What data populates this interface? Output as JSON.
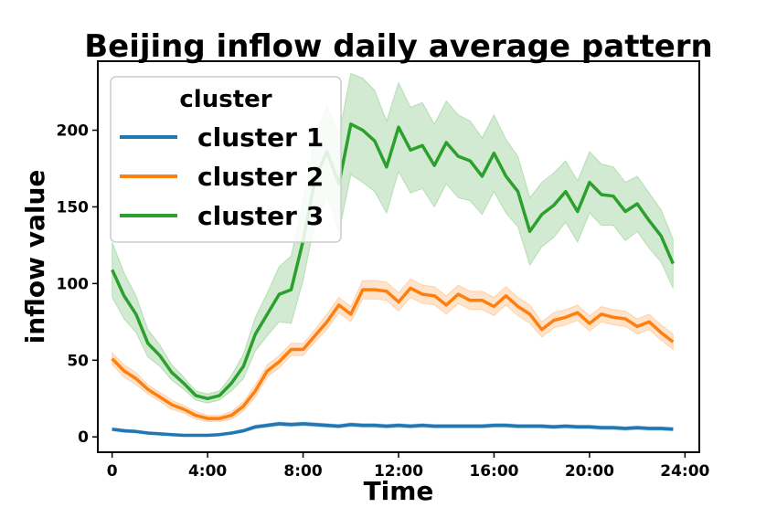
{
  "chart_data": {
    "type": "line",
    "title": "Beijing inflow daily average pattern",
    "xlabel": "Time",
    "ylabel": "inflow value",
    "xlim": [
      -0.6,
      24.6
    ],
    "ylim": [
      -10,
      245
    ],
    "x_ticks": [
      {
        "value": 0,
        "label": "0"
      },
      {
        "value": 4,
        "label": "4:00"
      },
      {
        "value": 8,
        "label": "8:00"
      },
      {
        "value": 12,
        "label": "12:00"
      },
      {
        "value": 16,
        "label": "16:00"
      },
      {
        "value": 20,
        "label": "20:00"
      },
      {
        "value": 24,
        "label": "24:00"
      }
    ],
    "y_ticks": [
      {
        "value": 0,
        "label": "0"
      },
      {
        "value": 50,
        "label": "50"
      },
      {
        "value": 100,
        "label": "100"
      },
      {
        "value": 150,
        "label": "150"
      },
      {
        "value": 200,
        "label": "200"
      }
    ],
    "grid": false,
    "legend": {
      "title": "cluster",
      "placement": "top-left"
    },
    "x": [
      0,
      0.5,
      1,
      1.5,
      2,
      2.5,
      3,
      3.5,
      4,
      4.5,
      5,
      5.5,
      6,
      6.5,
      7,
      7.5,
      8,
      8.5,
      9,
      9.5,
      10,
      10.5,
      11,
      11.5,
      12,
      12.5,
      13,
      13.5,
      14,
      14.5,
      15,
      15.5,
      16,
      16.5,
      17,
      17.5,
      18,
      18.5,
      19,
      19.5,
      20,
      20.5,
      21,
      21.5,
      22,
      22.5,
      23,
      23.5
    ],
    "series": [
      {
        "name": "cluster 1",
        "color": "#1f77b4",
        "values": [
          5,
          4,
          3.5,
          2.5,
          2,
          1.5,
          1,
          1,
          1,
          1.5,
          2.5,
          4,
          6.5,
          7.5,
          8.5,
          8,
          8.5,
          8,
          7.5,
          7,
          8,
          7.5,
          7.5,
          7,
          7.5,
          7,
          7.5,
          7,
          7,
          7,
          7,
          7,
          7.5,
          7.5,
          7,
          7,
          7,
          6.5,
          7,
          6.5,
          6.5,
          6,
          6,
          5.5,
          6,
          5.5,
          5.5,
          5
        ],
        "band": [
          1,
          1,
          1,
          0.8,
          0.8,
          0.6,
          0.5,
          0.5,
          0.5,
          0.6,
          0.8,
          1,
          1.2,
          1.2,
          1.2,
          1.2,
          1.2,
          1.2,
          1.2,
          1.2,
          1.2,
          1.2,
          1.2,
          1.2,
          1.2,
          1.2,
          1.2,
          1.2,
          1.2,
          1.2,
          1.2,
          1.2,
          1.2,
          1.2,
          1.2,
          1.2,
          1.2,
          1.2,
          1.2,
          1.2,
          1.2,
          1.2,
          1.2,
          1.2,
          1.2,
          1.2,
          1.2,
          1.2
        ]
      },
      {
        "name": "cluster 2",
        "color": "#ff7f0e",
        "values": [
          51,
          43,
          38,
          31,
          26,
          21,
          18,
          14,
          12,
          12,
          14,
          20,
          30,
          43,
          49,
          57,
          57,
          66,
          75,
          86,
          80,
          96,
          96,
          95,
          88,
          97,
          93,
          92,
          86,
          93,
          89,
          89,
          85,
          92,
          85,
          80,
          70,
          76,
          78,
          81,
          74,
          80,
          78,
          77,
          72,
          75,
          68,
          62
        ],
        "band": [
          4,
          4,
          4,
          3,
          3,
          3,
          2.5,
          2.5,
          2,
          2,
          2.5,
          3,
          4,
          4,
          4,
          4,
          4,
          4,
          5,
          5,
          5,
          6,
          6,
          6,
          6,
          6,
          6,
          6,
          6,
          6,
          6,
          6,
          6,
          6,
          6,
          6,
          5,
          5,
          5,
          5,
          5,
          5,
          5,
          5,
          5,
          5,
          5,
          5
        ]
      },
      {
        "name": "cluster 3",
        "color": "#2ca02c",
        "values": [
          109,
          92,
          80,
          61,
          53,
          42,
          35,
          27,
          25,
          27,
          35,
          46,
          67,
          80,
          93,
          96,
          128,
          168,
          186,
          165,
          204,
          200,
          193,
          176,
          202,
          187,
          190,
          177,
          192,
          183,
          180,
          170,
          185,
          170,
          160,
          134,
          145,
          151,
          160,
          147,
          166,
          158,
          157,
          147,
          152,
          141,
          131,
          113
        ],
        "band": [
          18,
          15,
          12,
          9,
          7,
          5,
          4,
          3,
          3,
          3,
          5,
          8,
          11,
          14,
          18,
          22,
          26,
          28,
          30,
          32,
          33,
          34,
          33,
          30,
          29,
          28,
          28,
          27,
          27,
          27,
          26,
          25,
          25,
          24,
          23,
          22,
          21,
          21,
          20,
          20,
          20,
          20,
          19,
          19,
          18,
          18,
          17,
          16
        ]
      }
    ]
  }
}
